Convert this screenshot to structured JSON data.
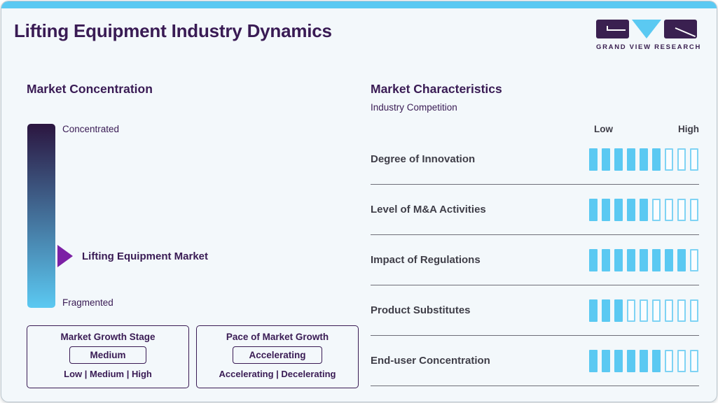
{
  "header": {
    "title": "Lifting Equipment Industry Dynamics",
    "brand": "GRAND VIEW RESEARCH"
  },
  "concentration": {
    "heading": "Market Concentration",
    "top_label": "Concentrated",
    "bottom_label": "Fragmented",
    "marker_label": "Lifting Equipment Market",
    "marker_position_pct_from_top": 72
  },
  "growth_boxes": [
    {
      "heading": "Market Growth Stage",
      "value": "Medium",
      "options": "Low | Medium | High"
    },
    {
      "heading": "Pace of Market Growth",
      "value": "Accelerating",
      "options": "Accelerating | Decelerating"
    }
  ],
  "characteristics": {
    "heading": "Market Characteristics",
    "subheading": "Industry Competition",
    "scale_low": "Low",
    "scale_high": "High",
    "segments_total": 9,
    "rows": [
      {
        "label": "Degree of Innovation",
        "filled": 6
      },
      {
        "label": "Level of M&A Activities",
        "filled": 5
      },
      {
        "label": "Impact of Regulations",
        "filled": 8
      },
      {
        "label": "Product Substitutes",
        "filled": 3
      },
      {
        "label": "End-user Concentration",
        "filled": 6
      }
    ]
  },
  "colors": {
    "accent_blue": "#5BC9F2",
    "heading_purple": "#391B54",
    "logo_purple": "#3A2050",
    "marker_purple": "#7C21A5",
    "gradient_top": "#2B1640",
    "gradient_bottom": "#5BC9F2",
    "row_label_gray": "#3F3E48",
    "divider_gray": "#6E6E78",
    "card_background": "#F3F8FB"
  },
  "chart_data": {
    "type": "bar",
    "title": "Market Characteristics — Industry Competition",
    "categories": [
      "Degree of Innovation",
      "Level of M&A Activities",
      "Impact of Regulations",
      "Product Substitutes",
      "End-user Concentration"
    ],
    "values": [
      6,
      5,
      8,
      3,
      6
    ],
    "value_scale": {
      "min": 0,
      "max": 9,
      "low_label": "Low",
      "high_label": "High"
    },
    "legend_position": "none",
    "annotations": {
      "market_concentration_scale": [
        "Concentrated",
        "Fragmented"
      ],
      "market_concentration_marker": "Lifting Equipment Market",
      "market_growth_stage": "Medium",
      "pace_of_market_growth": "Accelerating"
    }
  }
}
